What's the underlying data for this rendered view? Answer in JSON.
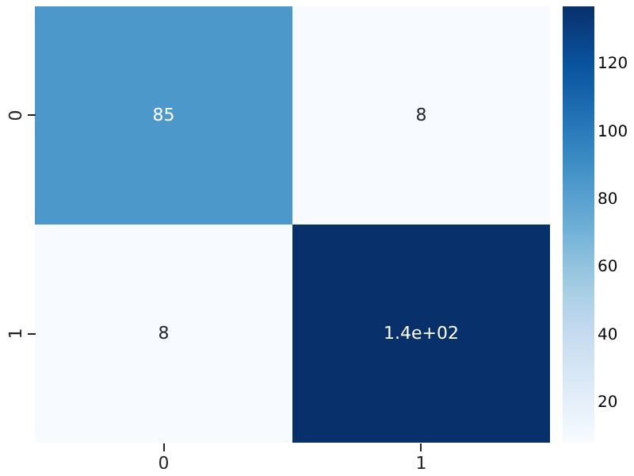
{
  "chart_data": {
    "type": "heatmap",
    "categories": [
      "0",
      "1"
    ],
    "y_categories": [
      "0",
      "1"
    ],
    "cells": [
      [
        85,
        8
      ],
      [
        8,
        137
      ]
    ],
    "cell_labels": [
      [
        "85",
        "8"
      ],
      [
        "8",
        "1.4e+02"
      ]
    ],
    "clim": [
      8,
      137
    ],
    "cticks": [
      20,
      40,
      60,
      80,
      100,
      120
    ]
  }
}
